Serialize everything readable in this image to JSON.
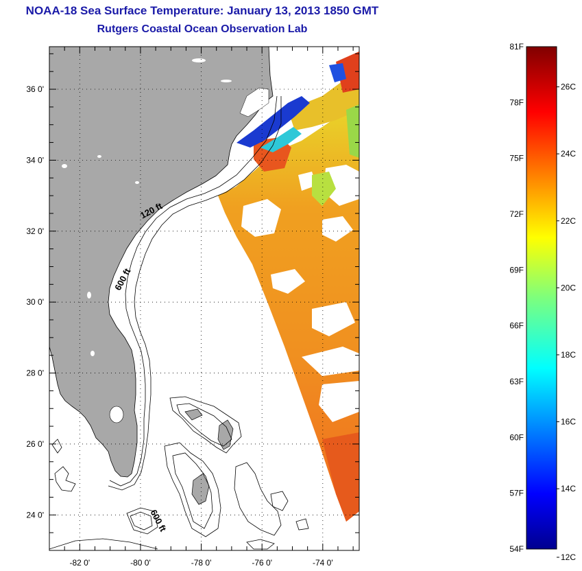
{
  "title": {
    "line1": "NOAA-18 Sea Surface Temperature:  January 13, 2013 1850 GMT",
    "line2": "Rutgers Coastal Ocean Observation Lab"
  },
  "map": {
    "lon_range": [
      -83,
      -72.8
    ],
    "lat_range": [
      23,
      37.2
    ],
    "lat_ticks": [
      {
        "value": 36,
        "label": "36 0'"
      },
      {
        "value": 34,
        "label": "34 0'"
      },
      {
        "value": 32,
        "label": "32 0'"
      },
      {
        "value": 30,
        "label": "30 0'"
      },
      {
        "value": 28,
        "label": "28 0'"
      },
      {
        "value": 26,
        "label": "26 0'"
      },
      {
        "value": 24,
        "label": "24 0'"
      }
    ],
    "lon_ticks": [
      {
        "value": -82,
        "label": "-82 0'"
      },
      {
        "value": -80,
        "label": "-80 0'"
      },
      {
        "value": -78,
        "label": "-78 0'"
      },
      {
        "value": -76,
        "label": "-76 0'"
      },
      {
        "value": -74,
        "label": "-74 0'"
      }
    ],
    "contour_labels": [
      {
        "text": "120 ft",
        "lon": -79.6,
        "lat": 32.5,
        "angle": -28
      },
      {
        "text": "600 ft",
        "lon": -80.5,
        "lat": 30.6,
        "angle": -62
      },
      {
        "text": "600 ft",
        "lon": -79.5,
        "lat": 23.8,
        "angle": 62
      }
    ],
    "colors": {
      "land": "#a8a8a8",
      "grid": "#000000",
      "background": "#ffffff"
    }
  },
  "colorbar": {
    "fahrenheit_labels": [
      "81F",
      "78F",
      "75F",
      "72F",
      "69F",
      "66F",
      "63F",
      "60F",
      "57F",
      "54F"
    ],
    "celsius_labels": [
      {
        "value": 26,
        "label": "26C"
      },
      {
        "value": 24,
        "label": "24C"
      },
      {
        "value": 22,
        "label": "22C"
      },
      {
        "value": 20,
        "label": "20C"
      },
      {
        "value": 18,
        "label": "18C"
      },
      {
        "value": 16,
        "label": "16C"
      },
      {
        "value": 14,
        "label": "14C"
      },
      {
        "value": 12,
        "label": "12C"
      }
    ],
    "range_f": [
      54,
      81
    ],
    "range_c": [
      12.2,
      27.2
    ]
  }
}
